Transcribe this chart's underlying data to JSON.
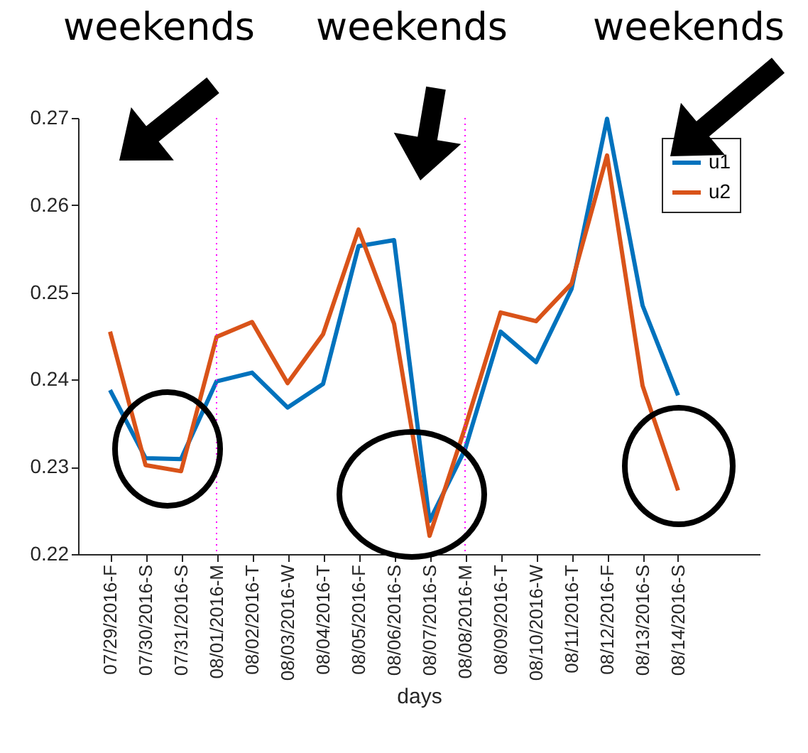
{
  "chart_data": {
    "type": "line",
    "xlabel": "days",
    "categories": [
      "07/29/2016-F",
      "07/30/2016-S",
      "07/31/2016-S",
      "08/01/2016-M",
      "08/02/2016-T",
      "08/03/2016-W",
      "08/04/2016-T",
      "08/05/2016-F",
      "08/06/2016-S",
      "08/07/2016-S",
      "08/08/2016-M",
      "08/09/2016-T",
      "08/10/2016-W",
      "08/11/2016-T",
      "08/12/2016-F",
      "08/13/2016-S",
      "08/14/2016-S"
    ],
    "series": [
      {
        "name": "u1",
        "color": "#0072bd",
        "values": [
          0.2388,
          0.231,
          0.2309,
          0.2398,
          0.2408,
          0.2368,
          0.2395,
          0.2553,
          0.256,
          0.2238,
          0.232,
          0.2455,
          0.242,
          0.2504,
          0.2699,
          0.2485,
          0.2382
        ]
      },
      {
        "name": "u2",
        "color": "#d95319",
        "values": [
          0.2455,
          0.2302,
          0.2295,
          0.2449,
          0.2466,
          0.2396,
          0.2452,
          0.2572,
          0.2464,
          0.2221,
          0.2345,
          0.2477,
          0.2467,
          0.251,
          0.2657,
          0.2393,
          0.2273
        ]
      }
    ],
    "ylim": [
      0.22,
      0.27
    ],
    "yticks": [
      0.22,
      0.23,
      0.24,
      0.25,
      0.26,
      0.27
    ],
    "ref_lines": [
      {
        "axis": "x",
        "value": "08/01/2016-M",
        "color": "#ff00ff",
        "line_style": "dotted"
      },
      {
        "axis": "x",
        "value": "08/08/2016-M",
        "color": "#ff00ff",
        "line_style": "dotted"
      }
    ],
    "legend": "top right",
    "grid": false,
    "annotations": [
      "weekends",
      "weekends",
      "weekends"
    ]
  }
}
